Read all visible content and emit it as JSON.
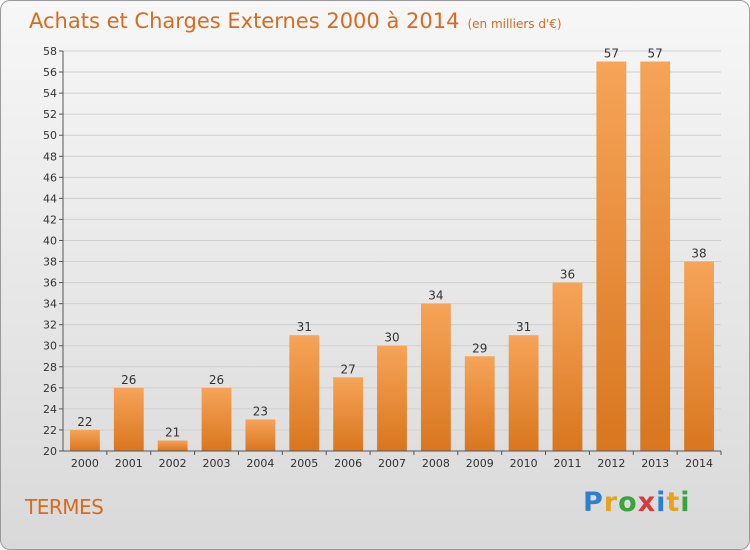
{
  "title": "Achats et Charges Externes 2000 à 2014",
  "subtitle": "(en milliers d'€)",
  "commune": "TERMES",
  "logo": {
    "letters": [
      "P",
      "r",
      "o",
      "x",
      "i",
      "t",
      "i"
    ],
    "colors": [
      "#2f7fd0",
      "#e8a21c",
      "#3aa53a",
      "#d63b3b",
      "#2f7fd0",
      "#e8a21c",
      "#3aa53a"
    ]
  },
  "colors": {
    "bar_light": "#f6a458",
    "bar_dark": "#d9761f",
    "accent": "#d86b1e"
  },
  "chart_data": {
    "type": "bar",
    "categories": [
      "2000",
      "2001",
      "2002",
      "2003",
      "2004",
      "2005",
      "2006",
      "2007",
      "2008",
      "2009",
      "2010",
      "2011",
      "2012",
      "2013",
      "2014"
    ],
    "values": [
      22,
      26,
      21,
      26,
      23,
      31,
      27,
      30,
      34,
      29,
      31,
      36,
      57,
      57,
      38
    ],
    "ylim": [
      20,
      58
    ],
    "yticks": [
      20,
      22,
      24,
      26,
      28,
      30,
      32,
      34,
      36,
      38,
      40,
      42,
      44,
      46,
      48,
      50,
      52,
      54,
      56,
      58
    ],
    "grid": true,
    "xlabel": "",
    "ylabel": ""
  }
}
